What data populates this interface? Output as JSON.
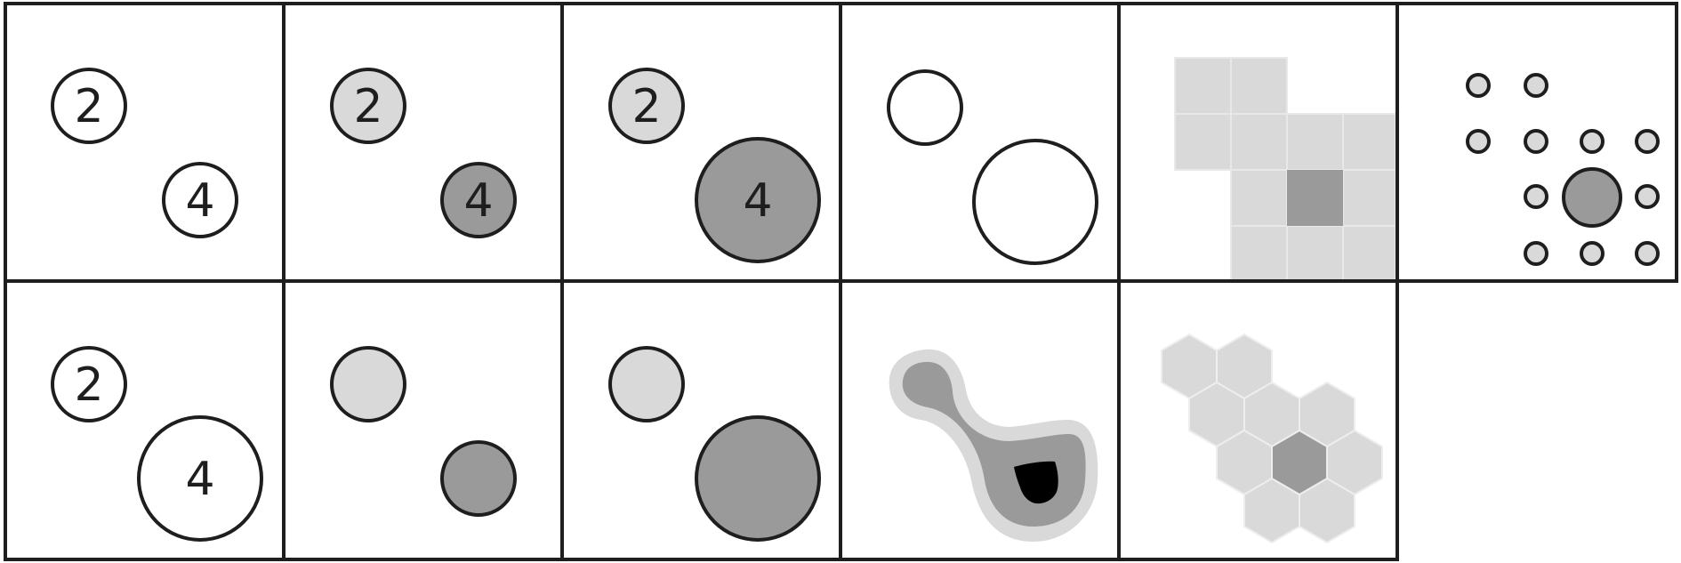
{
  "colors": {
    "stroke": "#1e1e1e",
    "light_fill": "#d9d9d9",
    "dark_fill": "#9a9a9a",
    "white": "#ffffff",
    "black": "#000000"
  },
  "labels": {
    "two": "2",
    "four": "4"
  },
  "panels": [
    {
      "id": "r1c1",
      "kind": "numbered-circles-equal-size-unfilled"
    },
    {
      "id": "r1c2",
      "kind": "numbered-circles-equal-size-shaded"
    },
    {
      "id": "r1c3",
      "kind": "numbered-circles-scaled-shaded"
    },
    {
      "id": "r1c4",
      "kind": "unlabeled-circles-scaled"
    },
    {
      "id": "r1c5",
      "kind": "square-grid"
    },
    {
      "id": "r1c6",
      "kind": "dot-pattern"
    },
    {
      "id": "r2c1",
      "kind": "numbered-circles-scaled-unfilled"
    },
    {
      "id": "r2c2",
      "kind": "circles-equal-size-shaded"
    },
    {
      "id": "r2c3",
      "kind": "circles-scaled-shaded"
    },
    {
      "id": "r2c4",
      "kind": "contour-blob"
    },
    {
      "id": "r2c5",
      "kind": "hex-grid"
    }
  ]
}
